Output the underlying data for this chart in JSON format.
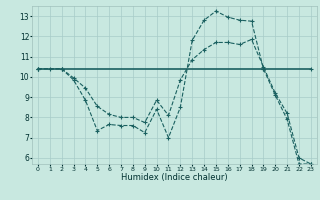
{
  "xlabel": "Humidex (Indice chaleur)",
  "bg_color": "#c8e8e0",
  "grid_color": "#a8ccc8",
  "line_color": "#1a6060",
  "line1_color": "#006868",
  "ylim": [
    5.7,
    13.5
  ],
  "xlim": [
    -0.5,
    23.5
  ],
  "yticks": [
    6,
    7,
    8,
    9,
    10,
    11,
    12,
    13
  ],
  "xticks": [
    0,
    1,
    2,
    3,
    4,
    5,
    6,
    7,
    8,
    9,
    10,
    11,
    12,
    13,
    14,
    15,
    16,
    17,
    18,
    19,
    20,
    21,
    22,
    23
  ],
  "line1_x": [
    0,
    1,
    2,
    19,
    23
  ],
  "line1_y": [
    10.4,
    10.4,
    10.4,
    10.4,
    10.4
  ],
  "line2_x": [
    0,
    2,
    3,
    4,
    5,
    6,
    7,
    8,
    9,
    10,
    11,
    12,
    13,
    14,
    15,
    16,
    17,
    18,
    19,
    20,
    21,
    22,
    23
  ],
  "line2_y": [
    10.4,
    10.4,
    9.85,
    8.85,
    7.35,
    7.65,
    7.6,
    7.6,
    7.25,
    8.4,
    7.0,
    8.5,
    11.8,
    12.8,
    13.25,
    12.95,
    12.8,
    12.75,
    10.4,
    9.1,
    7.9,
    5.7,
    5.7
  ],
  "line3_x": [
    0,
    2,
    3,
    4,
    5,
    6,
    7,
    8,
    9,
    10,
    11,
    12,
    13,
    14,
    15,
    16,
    17,
    18,
    19,
    20,
    21,
    22,
    23
  ],
  "line3_y": [
    10.4,
    10.4,
    9.95,
    9.45,
    8.55,
    8.15,
    8.0,
    8.0,
    7.75,
    8.85,
    8.1,
    9.85,
    10.85,
    11.35,
    11.7,
    11.7,
    11.6,
    11.85,
    10.5,
    9.2,
    8.2,
    6.0,
    5.7
  ]
}
